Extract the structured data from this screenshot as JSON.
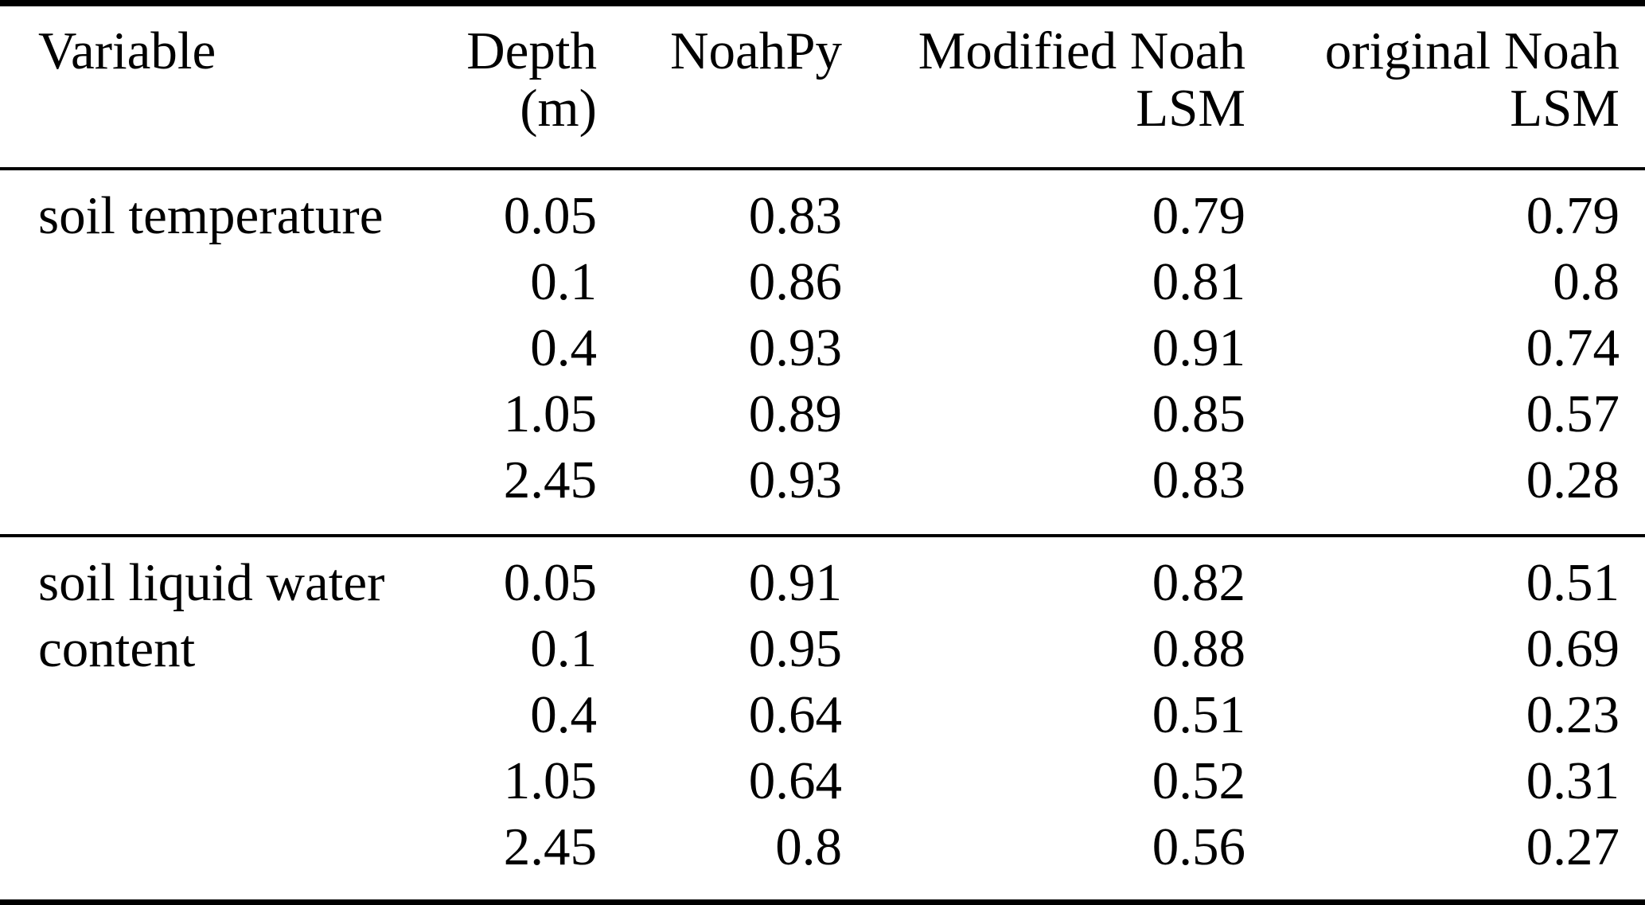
{
  "colors": {
    "text": "#000000",
    "background": "#ffffff",
    "rule": "#000000"
  },
  "table": {
    "header": {
      "variable": "Variable",
      "depth": [
        "Depth",
        "(m)"
      ],
      "noahpy": [
        "NoahPy"
      ],
      "modified": [
        "Modified Noah",
        "LSM"
      ],
      "original": [
        "original Noah",
        "LSM"
      ]
    },
    "sections": [
      {
        "variable": "soil temperature",
        "variable_lines": [
          "soil temperature"
        ],
        "rows": [
          {
            "depth": "0.05",
            "noahpy": "0.83",
            "modified": "0.79",
            "original": "0.79"
          },
          {
            "depth": "0.1",
            "noahpy": "0.86",
            "modified": "0.81",
            "original": "0.8"
          },
          {
            "depth": "0.4",
            "noahpy": "0.93",
            "modified": "0.91",
            "original": "0.74"
          },
          {
            "depth": "1.05",
            "noahpy": "0.89",
            "modified": "0.85",
            "original": "0.57"
          },
          {
            "depth": "2.45",
            "noahpy": "0.93",
            "modified": "0.83",
            "original": "0.28"
          }
        ]
      },
      {
        "variable": "soil liquid water content",
        "variable_lines": [
          "soil liquid water",
          "content"
        ],
        "rows": [
          {
            "depth": "0.05",
            "noahpy": "0.91",
            "modified": "0.82",
            "original": "0.51"
          },
          {
            "depth": "0.1",
            "noahpy": "0.95",
            "modified": "0.88",
            "original": "0.69"
          },
          {
            "depth": "0.4",
            "noahpy": "0.64",
            "modified": "0.51",
            "original": "0.23"
          },
          {
            "depth": "1.05",
            "noahpy": "0.64",
            "modified": "0.52",
            "original": "0.31"
          },
          {
            "depth": "2.45",
            "noahpy": "0.8",
            "modified": "0.56",
            "original": "0.27"
          }
        ]
      }
    ]
  },
  "chart_data": {
    "type": "table",
    "columns": [
      "Variable",
      "Depth (m)",
      "NoahPy",
      "Modified Noah LSM",
      "original Noah LSM"
    ],
    "rows": [
      [
        "soil temperature",
        0.05,
        0.83,
        0.79,
        0.79
      ],
      [
        "soil temperature",
        0.1,
        0.86,
        0.81,
        0.8
      ],
      [
        "soil temperature",
        0.4,
        0.93,
        0.91,
        0.74
      ],
      [
        "soil temperature",
        1.05,
        0.89,
        0.85,
        0.57
      ],
      [
        "soil temperature",
        2.45,
        0.93,
        0.83,
        0.28
      ],
      [
        "soil liquid water content",
        0.05,
        0.91,
        0.82,
        0.51
      ],
      [
        "soil liquid water content",
        0.1,
        0.95,
        0.88,
        0.69
      ],
      [
        "soil liquid water content",
        0.4,
        0.64,
        0.51,
        0.23
      ],
      [
        "soil liquid water content",
        1.05,
        0.64,
        0.52,
        0.31
      ],
      [
        "soil liquid water content",
        2.45,
        0.8,
        0.56,
        0.27
      ]
    ]
  }
}
